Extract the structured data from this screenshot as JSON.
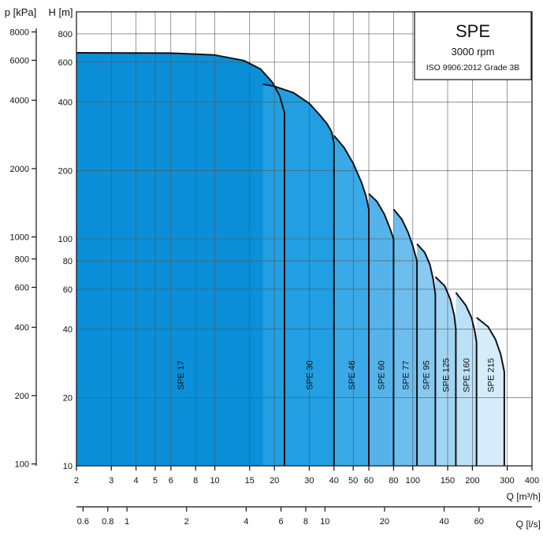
{
  "chart_data": {
    "type": "area",
    "title": "SPE",
    "subtitle": "3000 rpm",
    "standard": "ISO 9906:2012 Grade 3B",
    "x_scale": "log",
    "y_scale": "log",
    "xlabel": "Q [m³/h]",
    "xlabel2": "Q [l/s]",
    "ylabel": "H\n[m]",
    "ylabel_left": "p\n[kPa]",
    "xlim": [
      2,
      400
    ],
    "ylim": [
      10,
      1000
    ],
    "x_ticks": [
      2,
      3,
      4,
      5,
      6,
      8,
      10,
      15,
      20,
      30,
      40,
      50,
      60,
      80,
      100,
      150,
      200,
      300,
      400
    ],
    "x2_ticks": [
      0.6,
      0.8,
      1,
      2,
      4,
      6,
      8,
      10,
      20,
      40,
      60
    ],
    "x2_labels": [
      "0.6",
      "0.8",
      "1",
      "2",
      "4",
      "6",
      "8",
      "10",
      "20",
      "40",
      "60"
    ],
    "y_ticks": [
      10,
      20,
      40,
      60,
      80,
      100,
      200,
      400,
      600,
      800
    ],
    "p_ticks": [
      100,
      200,
      400,
      600,
      800,
      1000,
      2000,
      4000,
      6000,
      8000
    ],
    "grid": true,
    "legend": "none",
    "series": [
      {
        "name": "SPE 17",
        "color": "#0a8fd8",
        "q_max": 22.5,
        "points": [
          [
            2,
            660
          ],
          [
            6,
            658
          ],
          [
            10,
            645
          ],
          [
            14,
            610
          ],
          [
            17,
            560
          ],
          [
            19.5,
            490
          ],
          [
            21.2,
            430
          ],
          [
            22.5,
            360
          ],
          [
            22.5,
            10
          ]
        ]
      },
      {
        "name": "SPE 30",
        "color": "#219fe2",
        "q_max": 40,
        "points": [
          [
            17.5,
            480
          ],
          [
            20,
            470
          ],
          [
            25,
            440
          ],
          [
            30,
            395
          ],
          [
            34,
            350
          ],
          [
            37,
            320
          ],
          [
            39,
            295
          ],
          [
            40,
            262
          ],
          [
            40,
            10
          ]
        ]
      },
      {
        "name": "SPE 46",
        "color": "#3aa9e7",
        "q_max": 60,
        "points": [
          [
            40,
            285
          ],
          [
            45,
            252
          ],
          [
            50,
            215
          ],
          [
            55,
            178
          ],
          [
            58,
            155
          ],
          [
            60,
            135
          ],
          [
            60,
            10
          ]
        ]
      },
      {
        "name": "SPE 60",
        "color": "#55b3ea",
        "q_max": 80,
        "points": [
          [
            60,
            158
          ],
          [
            66,
            146
          ],
          [
            72,
            128
          ],
          [
            77,
            110
          ],
          [
            80,
            100
          ],
          [
            80,
            10
          ]
        ]
      },
      {
        "name": "SPE 77",
        "color": "#6dbdee",
        "q_max": 105,
        "points": [
          [
            80,
            135
          ],
          [
            88,
            122
          ],
          [
            95,
            106
          ],
          [
            100,
            93
          ],
          [
            105,
            80
          ],
          [
            105,
            10
          ]
        ]
      },
      {
        "name": "SPE 95",
        "color": "#87c9f1",
        "q_max": 130,
        "points": [
          [
            105,
            95
          ],
          [
            115,
            87
          ],
          [
            122,
            77
          ],
          [
            127,
            66
          ],
          [
            130,
            57
          ],
          [
            130,
            10
          ]
        ]
      },
      {
        "name": "SPE 125",
        "color": "#a2d5f4",
        "q_max": 165,
        "points": [
          [
            130,
            68
          ],
          [
            145,
            62
          ],
          [
            155,
            54
          ],
          [
            162,
            46
          ],
          [
            165,
            40
          ],
          [
            165,
            10
          ]
        ]
      },
      {
        "name": "SPE 160",
        "color": "#bce1f7",
        "q_max": 210,
        "points": [
          [
            165,
            58
          ],
          [
            185,
            51
          ],
          [
            198,
            45
          ],
          [
            206,
            39
          ],
          [
            210,
            35
          ],
          [
            210,
            10
          ]
        ]
      },
      {
        "name": "SPE 215",
        "color": "#d6ecfa",
        "q_max": 290,
        "points": [
          [
            210,
            45
          ],
          [
            240,
            41
          ],
          [
            262,
            36
          ],
          [
            278,
            31
          ],
          [
            290,
            26
          ],
          [
            290,
            10
          ]
        ]
      }
    ]
  }
}
